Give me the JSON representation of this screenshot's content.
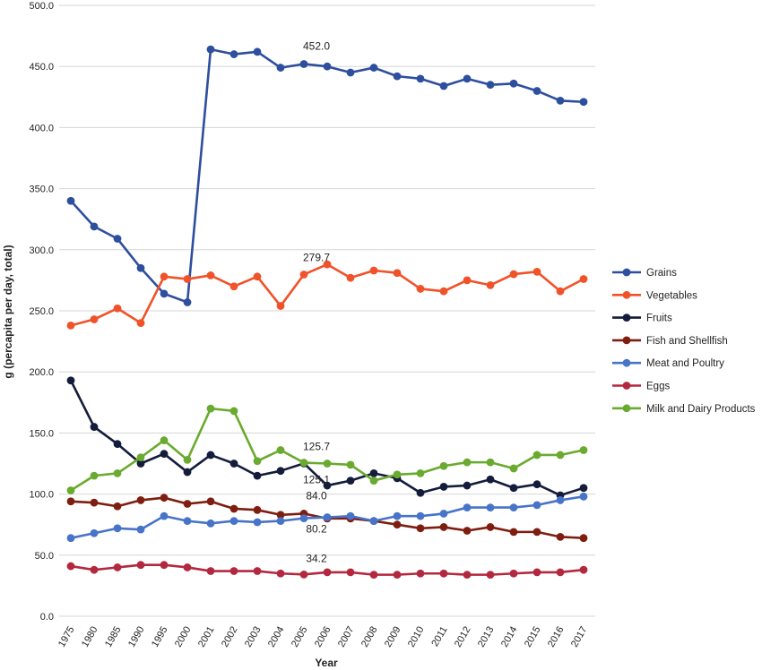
{
  "chart_data": {
    "type": "line",
    "title": "",
    "xlabel": "Year",
    "ylabel": "g (percapita per day, total)",
    "ylim": [
      0,
      500
    ],
    "yticks": [
      "0.0",
      "50.0",
      "100.0",
      "150.0",
      "200.0",
      "250.0",
      "300.0",
      "350.0",
      "400.0",
      "450.0",
      "500.0"
    ],
    "grid": true,
    "legend_position": "right",
    "categories": [
      "1975",
      "1980",
      "1985",
      "1990",
      "1995",
      "2000",
      "2001",
      "2002",
      "2003",
      "2004",
      "2005",
      "2006",
      "2007",
      "2008",
      "2009",
      "2010",
      "2011",
      "2012",
      "2013",
      "2014",
      "2015",
      "2016",
      "2017"
    ],
    "series": [
      {
        "name": "Grains",
        "color": "#2e4e9e",
        "values": [
          340,
          319,
          309,
          285,
          264,
          257,
          464,
          460,
          462,
          449,
          452.0,
          450,
          445,
          449,
          442,
          440,
          434,
          440,
          435,
          436,
          430,
          422,
          421
        ]
      },
      {
        "name": "Vegetables",
        "color": "#f0522a",
        "values": [
          238,
          243,
          252,
          240,
          278,
          276,
          279,
          270,
          278,
          254,
          279.7,
          288,
          277,
          283,
          281,
          268,
          266,
          275,
          271,
          280,
          282,
          266,
          276
        ]
      },
      {
        "name": "Fruits",
        "color": "#141c3c",
        "values": [
          193,
          155,
          141,
          125,
          133,
          118,
          132,
          125,
          115,
          119,
          125.1,
          107,
          111,
          117,
          113,
          101,
          106,
          107,
          112,
          105,
          108,
          99,
          105
        ]
      },
      {
        "name": "Fish and Shellfish",
        "color": "#7e1e10",
        "values": [
          94,
          93,
          90,
          95,
          97,
          92,
          94,
          88,
          87,
          83,
          84.0,
          80,
          80,
          78,
          75,
          72,
          73,
          70,
          73,
          69,
          69,
          65,
          64
        ]
      },
      {
        "name": "Meat and Poultry",
        "color": "#4774c8",
        "values": [
          64,
          68,
          72,
          71,
          82,
          78,
          76,
          78,
          77,
          78,
          80.2,
          81,
          82,
          78,
          82,
          82,
          84,
          89,
          89,
          89,
          91,
          95,
          98
        ]
      },
      {
        "name": "Eggs",
        "color": "#b3283f",
        "values": [
          41,
          38,
          40,
          42,
          42,
          40,
          37,
          37,
          37,
          35,
          34.2,
          36,
          36,
          34,
          34,
          35,
          35,
          34,
          34,
          35,
          36,
          36,
          38
        ]
      },
      {
        "name": "Milk and Dairy Products",
        "color": "#6aaa2e",
        "values": [
          103,
          115,
          117,
          130,
          144,
          128,
          170,
          168,
          127,
          136,
          125.7,
          125,
          124,
          111,
          116,
          117,
          123,
          126,
          126,
          121,
          132,
          132,
          136
        ]
      }
    ],
    "annotations": [
      {
        "text": "452.0",
        "x": "2005",
        "y": 452.0
      },
      {
        "text": "279.7",
        "x": "2005",
        "y": 279.7
      },
      {
        "text": "125.7",
        "x": "2005",
        "y": 125.7
      },
      {
        "text": "125.1",
        "x": "2005",
        "y": 125.1
      },
      {
        "text": "84.0",
        "x": "2005",
        "y": 84.0
      },
      {
        "text": "80.2",
        "x": "2005",
        "y": 80.2
      },
      {
        "text": "34.2",
        "x": "2005",
        "y": 34.2
      }
    ]
  }
}
